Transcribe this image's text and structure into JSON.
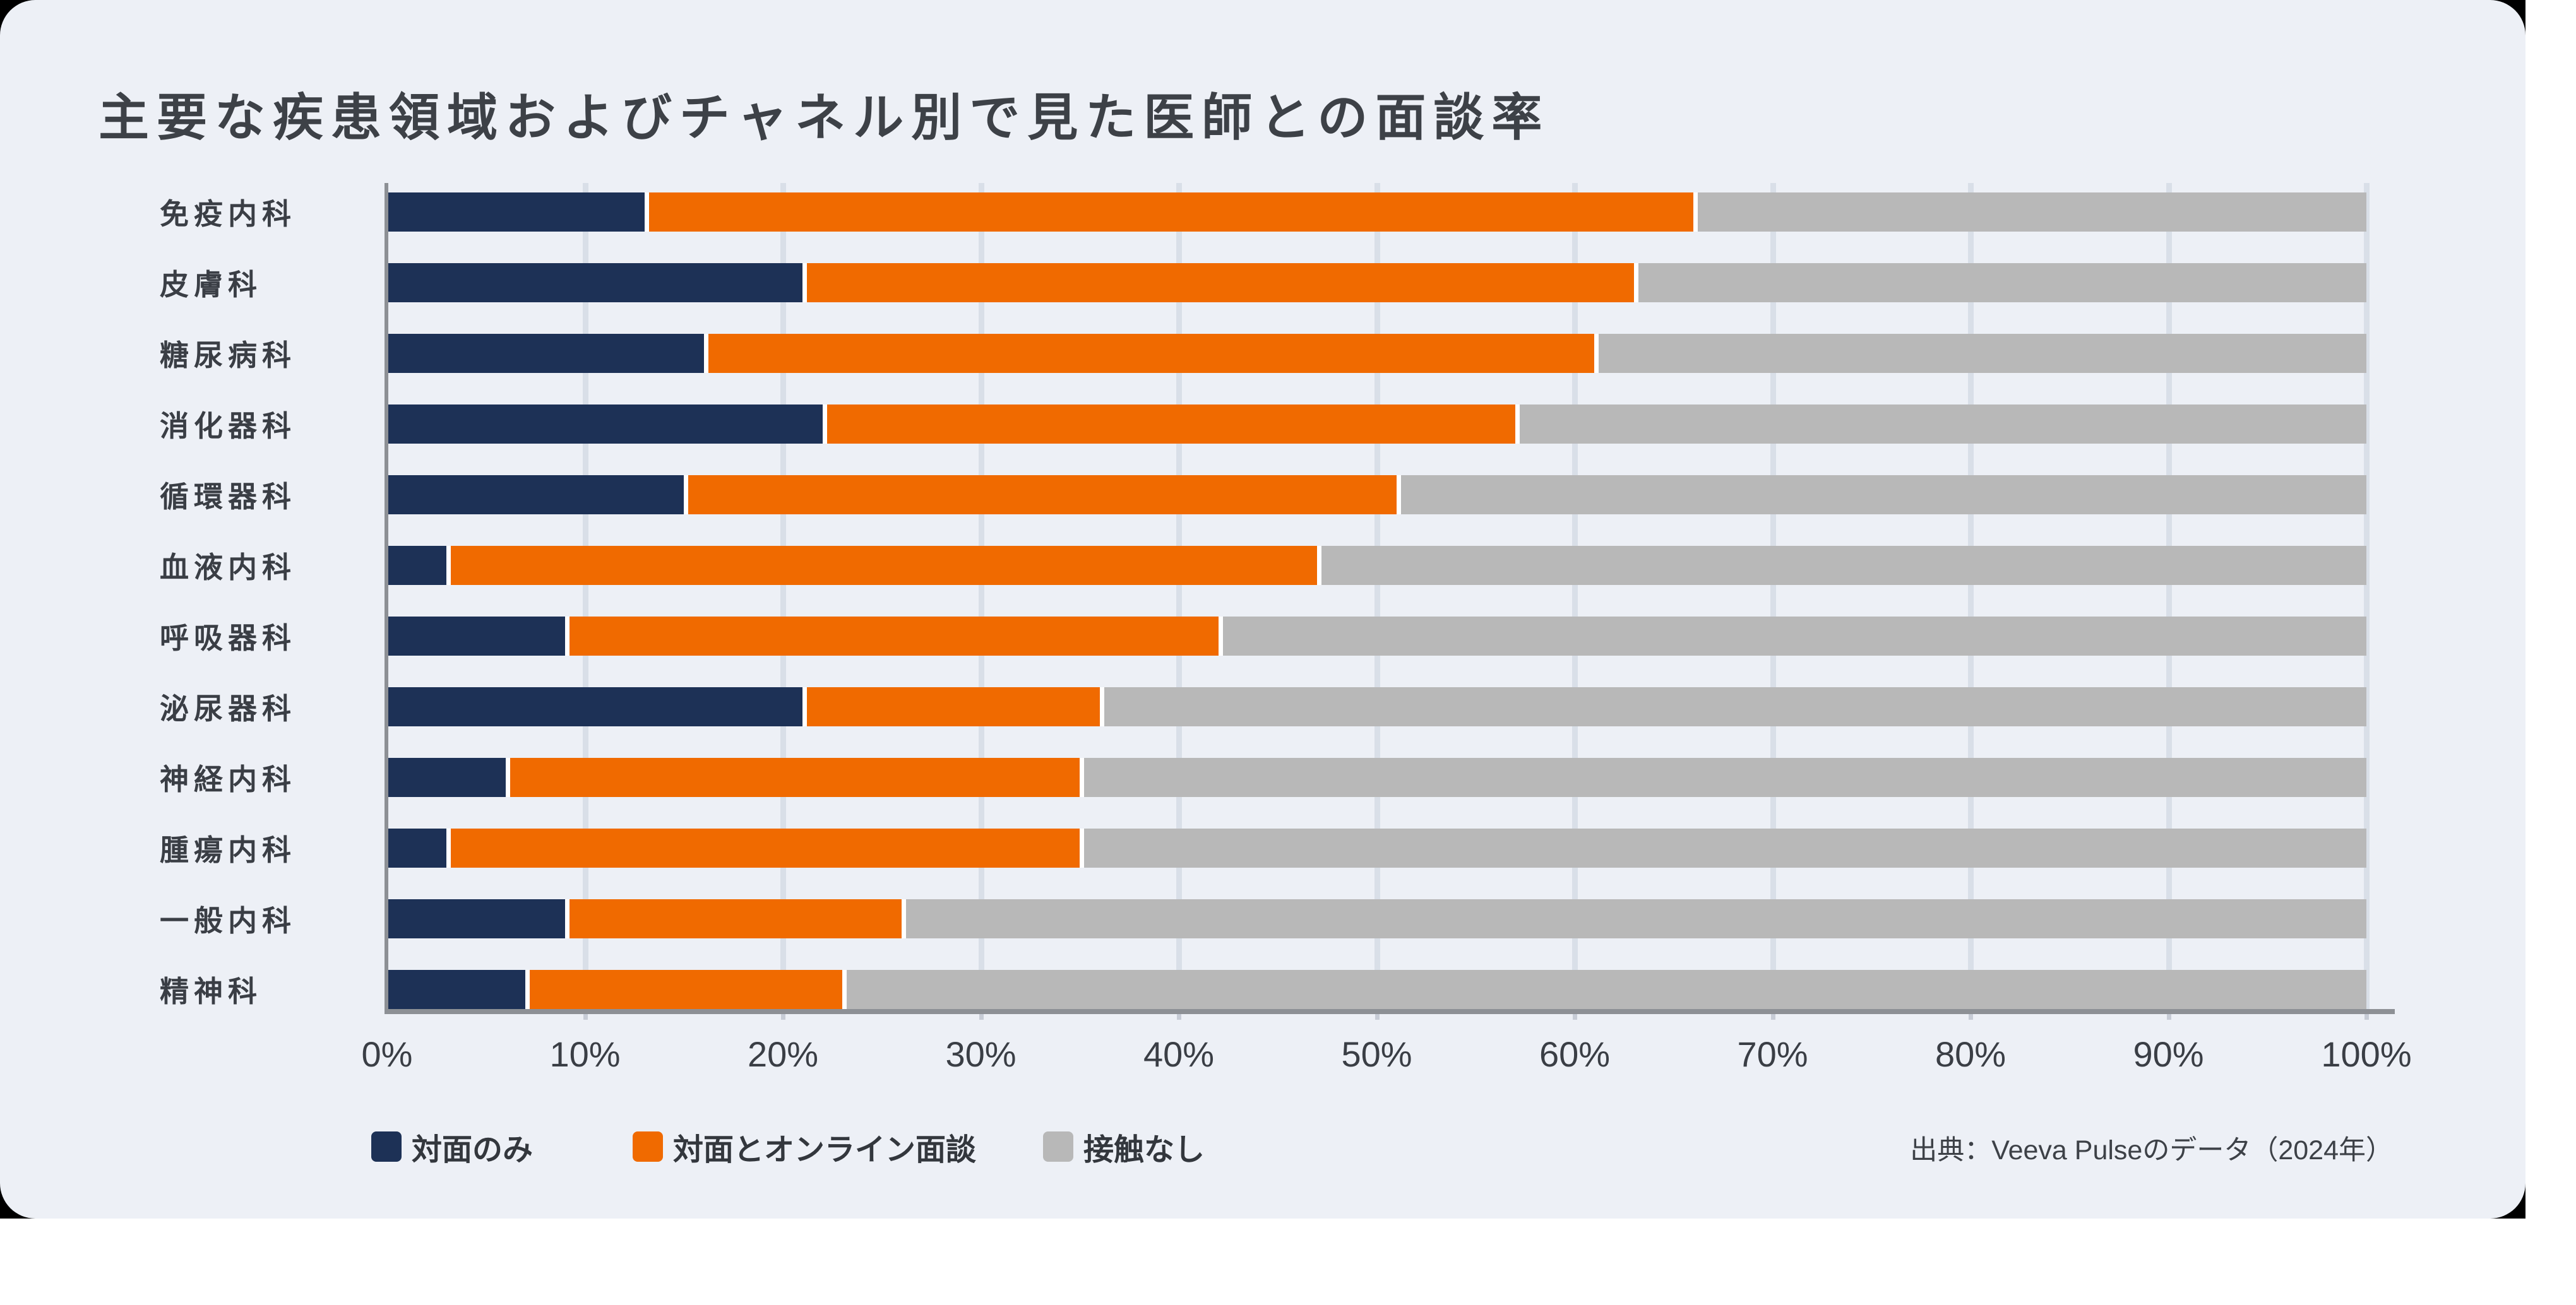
{
  "title": "主要な疾患領域およびチャネル別で見た医師との面談率",
  "source": "出典：Veeva Pulseのデータ（2024年）",
  "style_colors": {
    "card_background": "#edf0f6",
    "page_background": "#ffffff",
    "corner_backdrop": "#000000",
    "gridline": "#d9dfe8",
    "axis_line": "#8d9095",
    "title_text": "#3d4147",
    "label_text": "#3a3e45"
  },
  "chart_data": {
    "type": "bar",
    "orientation": "horizontal",
    "stacked": true,
    "title": "主要な疾患領域およびチャネル別で見た医師との面談率",
    "categories": [
      "免疫内科",
      "皮膚科",
      "糖尿病科",
      "消化器科",
      "循環器科",
      "血液内科",
      "呼吸器科",
      "泌尿器科",
      "神経内科",
      "腫瘍内科",
      "一般内科",
      "精神科"
    ],
    "series": [
      {
        "name": "対面のみ",
        "color": "#1d3156",
        "values": [
          13,
          21,
          16,
          22,
          15,
          3,
          9,
          21,
          6,
          3,
          9,
          7
        ]
      },
      {
        "name": "対面とオンライン面談",
        "color": "#f06a00",
        "values": [
          53,
          42,
          45,
          35,
          36,
          44,
          33,
          15,
          29,
          32,
          17,
          16
        ]
      },
      {
        "name": "接触なし",
        "color": "#b8b8b8",
        "values": [
          34,
          37,
          39,
          43,
          49,
          53,
          58,
          64,
          65,
          65,
          74,
          77
        ]
      }
    ],
    "x_ticks": [
      "0%",
      "10%",
      "20%",
      "30%",
      "40%",
      "50%",
      "60%",
      "70%",
      "80%",
      "90%",
      "100%"
    ],
    "xlim": [
      0,
      100
    ],
    "unit": "%",
    "grid": true,
    "legend_position": "bottom"
  },
  "legend": {
    "items": [
      {
        "label": "対面のみ",
        "color": "#1d3156"
      },
      {
        "label": "対面とオンライン面談",
        "color": "#f06a00"
      },
      {
        "label": "接触なし",
        "color": "#b8b8b8"
      }
    ]
  }
}
